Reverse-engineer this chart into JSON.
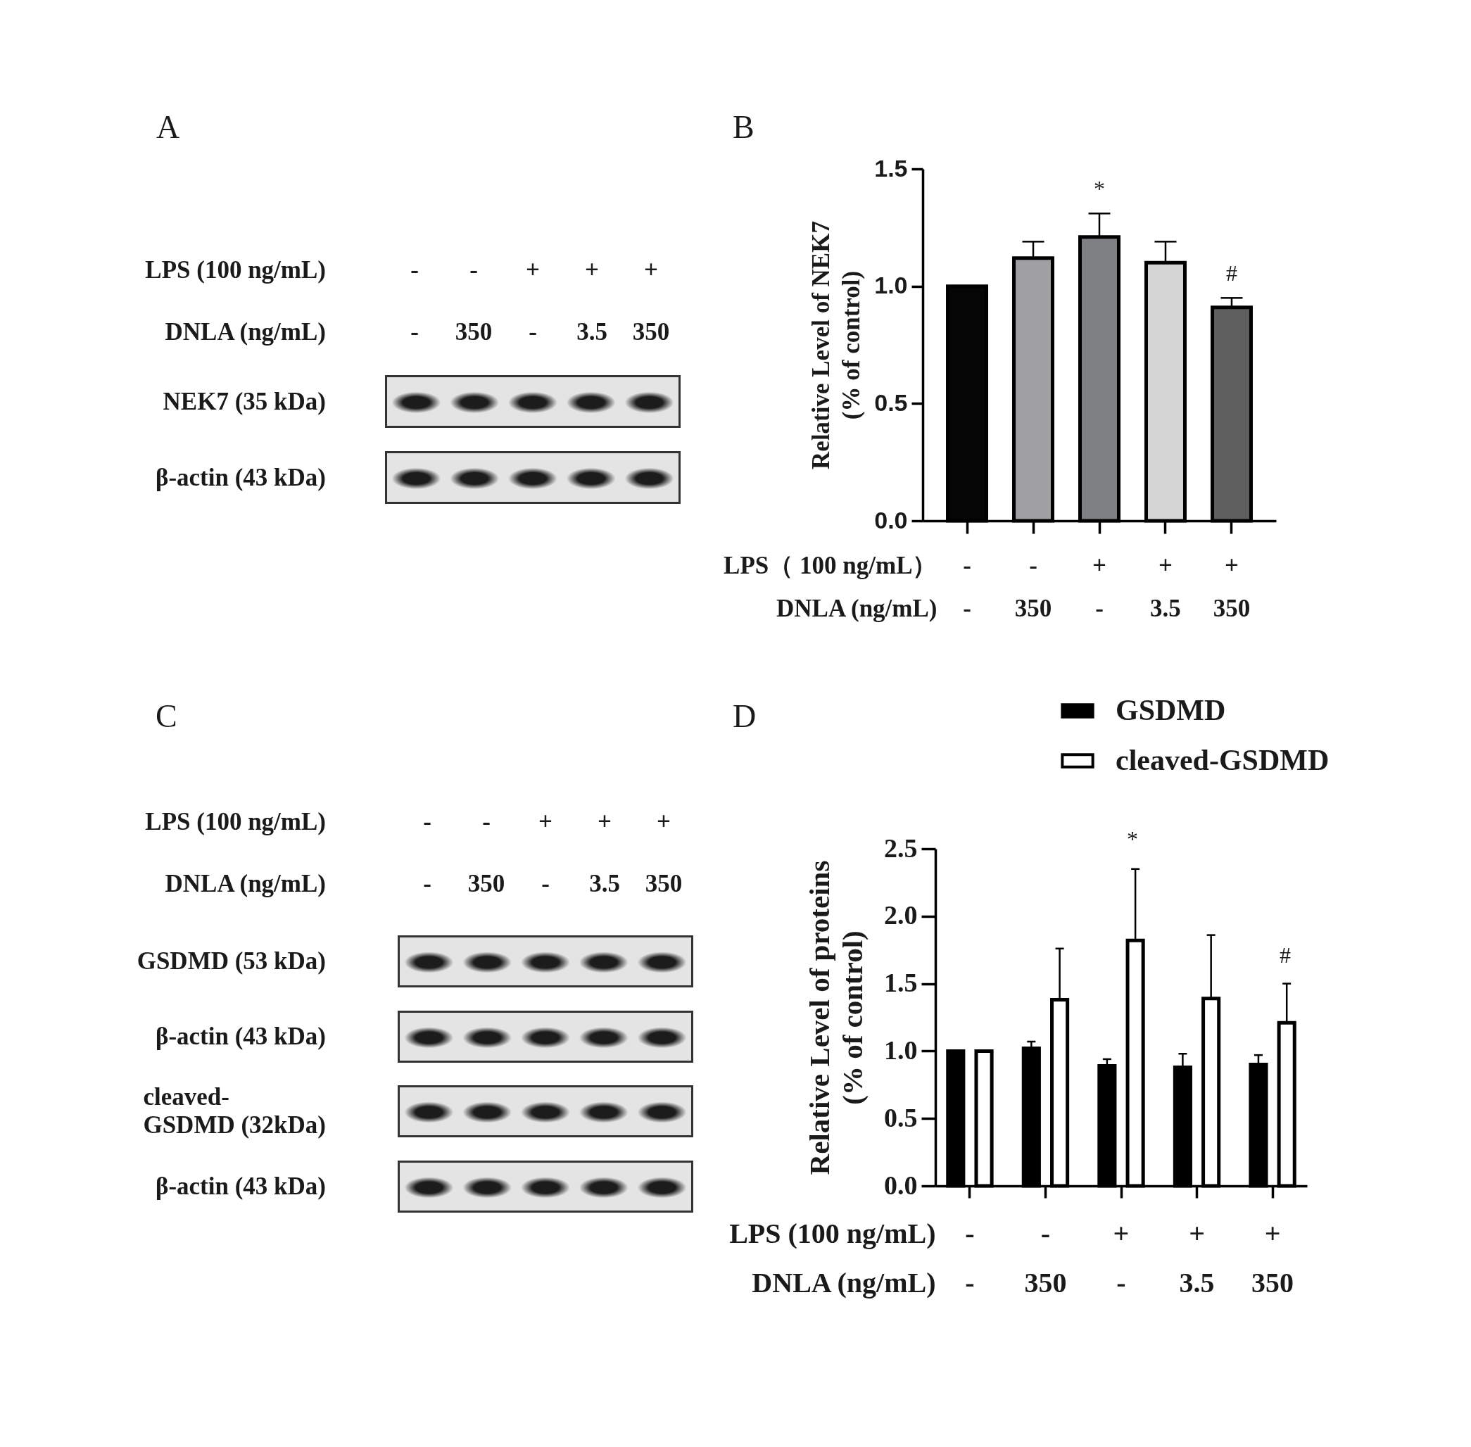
{
  "chart_data": [
    {
      "type": "other",
      "title": "A",
      "xlabel": "LPS (100 ng/mL)\nDNLA (ng/mL)",
      "categories": [
        "-\n-",
        "-\n350",
        "+\n-",
        "+\n3.5",
        "+\n350"
      ],
      "y_categories": [
        "NEK7 (35 kDa)",
        "β-actin (43 kDa)"
      ]
    },
    {
      "type": "bar",
      "title": "B",
      "xlabel": "LPS（ 100 ng/mL）\nDNLA (ng/mL)",
      "ylabel": "Relative Level of NEK7\n(% of control)",
      "categories": [
        "-\n-",
        "-\n350",
        "+\n-",
        "+\n3.5",
        "+\n350"
      ],
      "values": [
        1.0,
        1.12,
        1.21,
        1.1,
        0.91
      ],
      "colors": [
        "#050505",
        "#a0a0a4",
        "#7e8083",
        "#d5d5d5",
        "#5f5f5f"
      ],
      "errors": [
        null,
        [
          1.12,
          1.19
        ],
        [
          1.21,
          1.31
        ],
        [
          1.1,
          1.19
        ],
        [
          0.91,
          0.95
        ]
      ],
      "ylim": [
        0,
        1.5
      ],
      "yticks": [
        {
          "value": 0,
          "label": "0.0"
        },
        0.5,
        {
          "value": 1,
          "label": "1.0"
        },
        1.5
      ],
      "annotations": [
        {
          "text": "*",
          "x": "+\n-",
          "y": 1.31
        },
        {
          "text": "#",
          "x": "+\n350",
          "y": 0.95
        }
      ]
    },
    {
      "type": "other",
      "title": "C",
      "xlabel": "LPS (100 ng/mL)\nDNLA (ng/mL)",
      "categories": [
        "-\n-",
        "-\n350",
        "+\n-",
        "+\n3.5",
        "+\n350"
      ],
      "y_categories": [
        "GSDMD (53 kDa)",
        "β-actin (43 kDa)",
        "cleaved-\nGSDMD (32kDa)",
        "β-actin (43 kDa)"
      ]
    },
    {
      "type": "bar",
      "title": "D",
      "xlabel": "LPS (100 ng/mL)\nDNLA (ng/mL)",
      "ylabel": "Relative Level of proteins\n(% of control)",
      "categories": [
        "-\n-",
        "-\n350",
        "+\n-",
        "+\n3.5",
        "+\n350"
      ],
      "series": [
        {
          "name": "GSDMD",
          "color": "#000000",
          "values": [
            1.0,
            1.02,
            0.89,
            0.88,
            0.9
          ],
          "errors": [
            null,
            [
              1.02,
              1.07
            ],
            [
              0.89,
              0.94
            ],
            [
              0.88,
              0.98
            ],
            [
              0.9,
              0.97
            ]
          ]
        },
        {
          "name": "cleaved-GSDMD",
          "color": "#ffffff",
          "values": [
            1.0,
            1.38,
            1.82,
            1.39,
            1.21
          ],
          "errors": [
            null,
            [
              1.38,
              1.76
            ],
            [
              1.82,
              2.35
            ],
            [
              1.39,
              1.86
            ],
            [
              1.21,
              1.5
            ]
          ]
        }
      ],
      "ylim": [
        0,
        2.5
      ],
      "yticks": [
        {
          "value": 0,
          "label": "0.0"
        },
        0.5,
        {
          "value": 1,
          "label": "1.0"
        },
        1.5,
        {
          "value": 2,
          "label": "2.0"
        },
        2.5
      ],
      "legend": "top right",
      "annotations": [
        "*",
        "#"
      ]
    }
  ]
}
